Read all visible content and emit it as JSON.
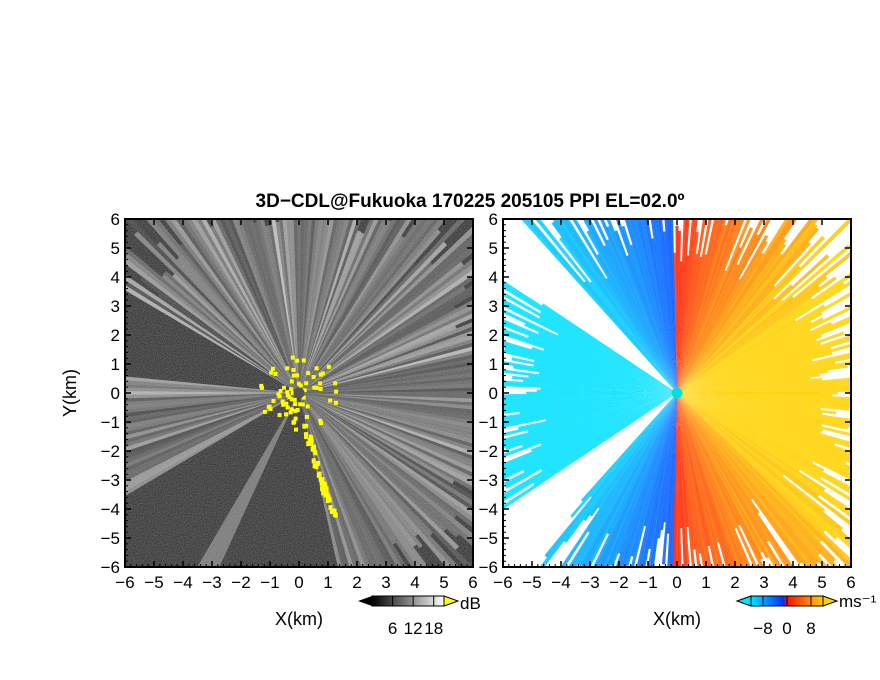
{
  "title": "3D−CDL@Fukuoka 170225 205105 PPI EL=02.0º",
  "chart_data": [
    {
      "type": "heatmap",
      "panel": "reflectivity",
      "xlabel": "X(km)",
      "ylabel": "Y(km)",
      "xlim": [
        -6,
        6
      ],
      "ylim": [
        -6,
        6
      ],
      "x_ticks": [
        "−6",
        "−5",
        "−4",
        "−3",
        "−2",
        "−1",
        "0",
        "1",
        "2",
        "3",
        "4",
        "5",
        "6"
      ],
      "y_ticks": [
        "6",
        "5",
        "4",
        "3",
        "2",
        "1",
        "0",
        "−1",
        "−2",
        "−3",
        "−4",
        "−5",
        "−6"
      ],
      "radar_origin": [
        0,
        0
      ],
      "colorbar": {
        "unit": "dB",
        "ticks": [
          "6",
          "12",
          "18"
        ],
        "range": [
          0,
          21
        ]
      },
      "colors": {
        "background": "#2a2a2a",
        "high_echo": "#ffff00",
        "site": "#555555"
      }
    },
    {
      "type": "heatmap",
      "panel": "doppler-velocity",
      "xlabel": "X(km)",
      "ylabel": "",
      "xlim": [
        -6,
        6
      ],
      "ylim": [
        -6,
        6
      ],
      "x_ticks": [
        "−6",
        "−5",
        "−4",
        "−3",
        "−2",
        "−1",
        "0",
        "1",
        "2",
        "3",
        "4",
        "5",
        "6"
      ],
      "y_ticks": [
        "6",
        "5",
        "4",
        "3",
        "2",
        "1",
        "0",
        "−1",
        "−2",
        "−3",
        "−4",
        "−5",
        "−6"
      ],
      "radar_origin": [
        0,
        0
      ],
      "colorbar": {
        "unit": "ms⁻¹",
        "ticks": [
          "−8",
          "0",
          "8"
        ],
        "range": [
          -12,
          12
        ]
      },
      "colors": {
        "negative_far": "#00e5ff",
        "negative_near": "#0040ff",
        "zero": "#ff2000",
        "positive_far": "#ffd000",
        "site": "#00e0e0"
      }
    }
  ]
}
